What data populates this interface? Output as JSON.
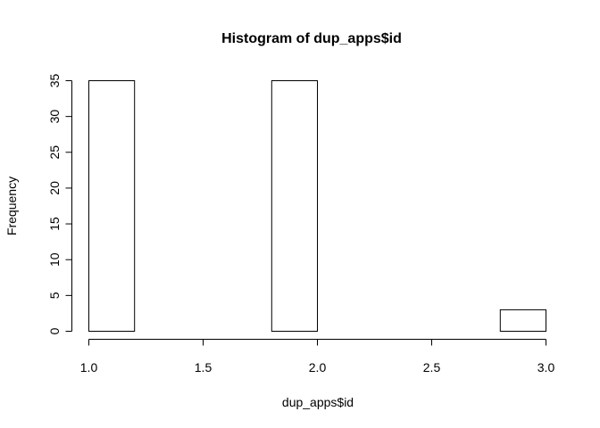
{
  "chart_data": {
    "type": "bar",
    "subtype": "histogram",
    "title": "Histogram of dup_apps$id",
    "xlabel": "dup_apps$id",
    "ylabel": "Frequency",
    "bins": [
      {
        "x0": 1.0,
        "x1": 1.2,
        "count": 35
      },
      {
        "x0": 1.2,
        "x1": 1.4,
        "count": 0
      },
      {
        "x0": 1.4,
        "x1": 1.6,
        "count": 0
      },
      {
        "x0": 1.6,
        "x1": 1.8,
        "count": 0
      },
      {
        "x0": 1.8,
        "x1": 2.0,
        "count": 35
      },
      {
        "x0": 2.0,
        "x1": 2.2,
        "count": 0
      },
      {
        "x0": 2.2,
        "x1": 2.4,
        "count": 0
      },
      {
        "x0": 2.4,
        "x1": 2.6,
        "count": 0
      },
      {
        "x0": 2.6,
        "x1": 2.8,
        "count": 0
      },
      {
        "x0": 2.8,
        "x1": 3.0,
        "count": 3
      }
    ],
    "xlim": [
      1.0,
      3.0
    ],
    "ylim": [
      0,
      35
    ],
    "x_ticks": [
      "1.0",
      "1.5",
      "2.0",
      "2.5",
      "3.0"
    ],
    "y_ticks": [
      "0",
      "5",
      "10",
      "15",
      "20",
      "25",
      "30",
      "35"
    ],
    "grid": false,
    "colors": {
      "bar_fill": "#ffffff",
      "bar_stroke": "#000000",
      "axis": "#000000"
    }
  }
}
